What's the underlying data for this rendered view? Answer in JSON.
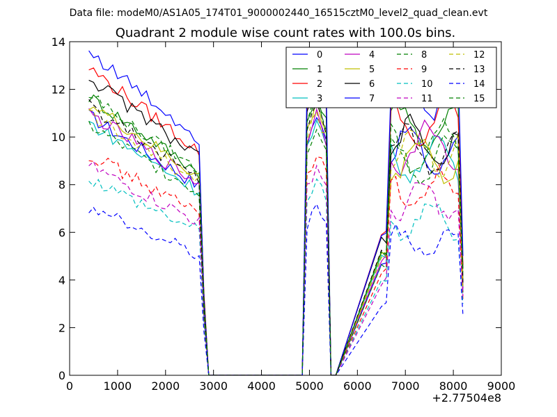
{
  "chart_data": {
    "type": "line",
    "suptitle": "Data file: modeM0/AS1A05_174T01_9000002440_16515cztM0_level2_quad_clean.evt",
    "title": "Quadrant 2 module wise count rates with 100.0s bins.",
    "xlabel": "",
    "ylabel": "",
    "xlim": [
      0,
      9000
    ],
    "ylim": [
      0,
      14
    ],
    "x_ticks": [
      0,
      1000,
      2000,
      3000,
      4000,
      5000,
      6000,
      7000,
      8000,
      9000
    ],
    "x_tick_labels": [
      "0",
      "1000",
      "2000",
      "3000",
      "4000",
      "5000",
      "6000",
      "7000",
      "8000",
      "9000"
    ],
    "y_ticks": [
      0,
      2,
      4,
      6,
      8,
      10,
      12,
      14
    ],
    "y_tick_labels": [
      "0",
      "2",
      "4",
      "6",
      "8",
      "10",
      "12",
      "14"
    ],
    "x_offset_label": "+2.77504e8",
    "legend_position": "upper-right",
    "legend_columns": 4,
    "x": [
      400,
      500,
      600,
      700,
      800,
      900,
      1000,
      1100,
      1200,
      1300,
      1400,
      1500,
      1600,
      1700,
      1800,
      1900,
      2000,
      2100,
      2200,
      2300,
      2400,
      2500,
      2600,
      2700,
      2800,
      2900,
      3000,
      4850,
      4950,
      5050,
      5150,
      5250,
      5350,
      5450,
      5550,
      6500,
      6600,
      6700,
      6800,
      6900,
      7000,
      7100,
      7200,
      7300,
      7400,
      7500,
      7600,
      7700,
      7800,
      7900,
      8000,
      8100,
      8200
    ],
    "series": [
      {
        "name": "0",
        "color": "#0000ff",
        "dashed": false,
        "level": 10.9,
        "gap": 9.4,
        "mod": 0.3
      },
      {
        "name": "1",
        "color": "#008000",
        "dashed": false,
        "level": 11.7,
        "gap": 10.4,
        "mod": 0.3
      },
      {
        "name": "2",
        "color": "#ff0000",
        "dashed": false,
        "level": 12.9,
        "gap": 10.5,
        "mod": 0.3
      },
      {
        "name": "3",
        "color": "#00bfbf",
        "dashed": false,
        "level": 10.6,
        "gap": 9.1,
        "mod": 0.3
      },
      {
        "name": "4",
        "color": "#bf00bf",
        "dashed": false,
        "level": 11.0,
        "gap": 9.6,
        "mod": 0.3
      },
      {
        "name": "5",
        "color": "#bfbf00",
        "dashed": false,
        "level": 11.4,
        "gap": 9.1,
        "mod": 0.3
      },
      {
        "name": "6",
        "color": "#000000",
        "dashed": false,
        "level": 12.5,
        "gap": 9.7,
        "mod": 0.3
      },
      {
        "name": "7",
        "color": "#0000ff",
        "dashed": false,
        "level": 13.6,
        "gap": 11.9,
        "mod": 0.3
      },
      {
        "name": "8",
        "color": "#008000",
        "dashed": true,
        "level": 10.5,
        "gap": 9.0,
        "mod": 0.3
      },
      {
        "name": "9",
        "color": "#ff0000",
        "dashed": true,
        "level": 9.3,
        "gap": 7.8,
        "mod": 0.3
      },
      {
        "name": "10",
        "color": "#00bfbf",
        "dashed": true,
        "level": 8.3,
        "gap": 6.5,
        "mod": 0.3
      },
      {
        "name": "11",
        "color": "#bf00bf",
        "dashed": true,
        "level": 8.8,
        "gap": 7.3,
        "mod": 0.3
      },
      {
        "name": "12",
        "color": "#bfbf00",
        "dashed": true,
        "level": 11.0,
        "gap": 9.5,
        "mod": 0.3
      },
      {
        "name": "13",
        "color": "#000000",
        "dashed": true,
        "level": 11.3,
        "gap": 9.5,
        "mod": 0.3
      },
      {
        "name": "14",
        "color": "#0000ff",
        "dashed": true,
        "level": 7.0,
        "gap": 5.6,
        "mod": 0.3
      },
      {
        "name": "15",
        "color": "#008000",
        "dashed": true,
        "level": 11.7,
        "gap": 9.6,
        "mod": 0.3
      }
    ]
  }
}
